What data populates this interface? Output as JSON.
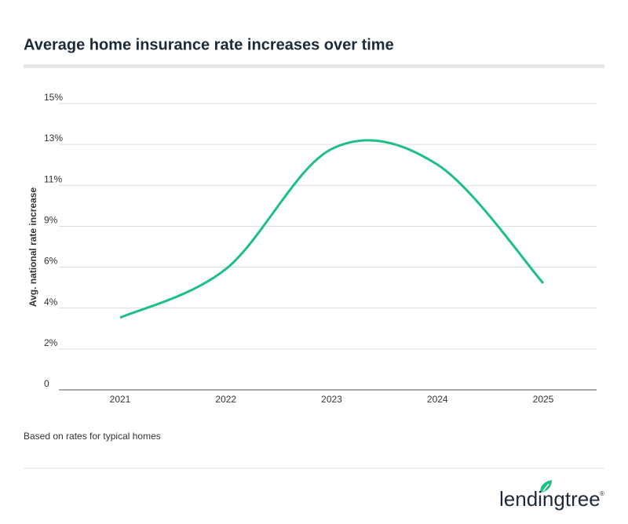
{
  "chart_data": {
    "type": "line",
    "title": "Average home insurance rate increases over time",
    "y_label": "Avg. national rate increase",
    "categories": [
      "2021",
      "2022",
      "2023",
      "2024",
      "2025"
    ],
    "values": [
      3.78,
      6.33,
      12.62,
      11.8,
      5.59
    ],
    "color": "#1dbf82",
    "ylim": [
      0,
      15
    ],
    "yticks": [
      0,
      {
        "value": 2.14,
        "label": "2%"
      },
      {
        "value": 4.29,
        "label": "4%"
      },
      {
        "value": 6.43,
        "label": "6%"
      },
      {
        "value": 8.57,
        "label": "9%"
      },
      {
        "value": 10.71,
        "label": "11%"
      },
      {
        "value": 12.86,
        "label": "13%"
      },
      {
        "value": 15,
        "label": "15%"
      }
    ],
    "grid": true,
    "note": "Based on rates for typical homes"
  },
  "brand": "lendingtree"
}
